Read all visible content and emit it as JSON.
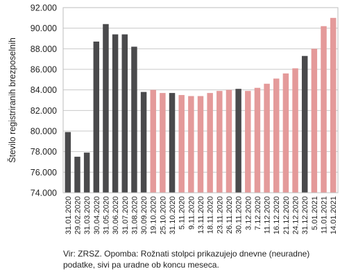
{
  "chart_data": {
    "type": "bar",
    "ylabel": "Število registriranih brezposelnih",
    "ylim": [
      74000,
      92000
    ],
    "yticks": [
      "74.000",
      "76.000",
      "78.000",
      "80.000",
      "82.000",
      "84.000",
      "86.000",
      "88.000",
      "90.000",
      "92.000"
    ],
    "grid": true,
    "categories": [
      "31.01.2020",
      "29.02.2020",
      "31.03.2020",
      "30.04.2020",
      "31.05.2020",
      "30.06.2020",
      "31.07.2020",
      "31.08.2020",
      "30.09.2020",
      "19.10.2020",
      "25.10.2020",
      "31.10.2020",
      "5.11.2020",
      "9.11.2020",
      "13.11.2020",
      "18.11.2020",
      "23.11.2020",
      "26.11.2020",
      "30.11.2020",
      "3.12.2020",
      "7.12.2020",
      "11.12.2020",
      "16.12.2020",
      "21.12.2020",
      "24.12.2020",
      "31.12.2020",
      "5.01.2021",
      "11.01.2021",
      "14.01.2021"
    ],
    "values": [
      79900,
      77500,
      77900,
      88700,
      90400,
      89400,
      89400,
      88200,
      83800,
      84000,
      83700,
      83700,
      83500,
      83400,
      83400,
      83700,
      83900,
      84000,
      84100,
      83900,
      84200,
      84600,
      85100,
      85600,
      86100,
      87300,
      88000,
      90200,
      91000
    ],
    "kinds": [
      "monthly",
      "monthly",
      "monthly",
      "monthly",
      "monthly",
      "monthly",
      "monthly",
      "monthly",
      "monthly",
      "daily",
      "daily",
      "monthly",
      "daily",
      "daily",
      "daily",
      "daily",
      "daily",
      "daily",
      "monthly",
      "daily",
      "daily",
      "daily",
      "daily",
      "daily",
      "daily",
      "monthly",
      "daily",
      "daily",
      "daily"
    ],
    "colors": {
      "monthly": "#4a4a4c",
      "daily": "#e49a9a",
      "grid": "#c8c8c8",
      "frame": "#bdbdbd"
    }
  },
  "note": "Vir: ZRSZ. Opomba: Rožnati stolpci prikazujejo dnevne (neuradne) podatke, sivi pa uradne ob koncu meseca."
}
